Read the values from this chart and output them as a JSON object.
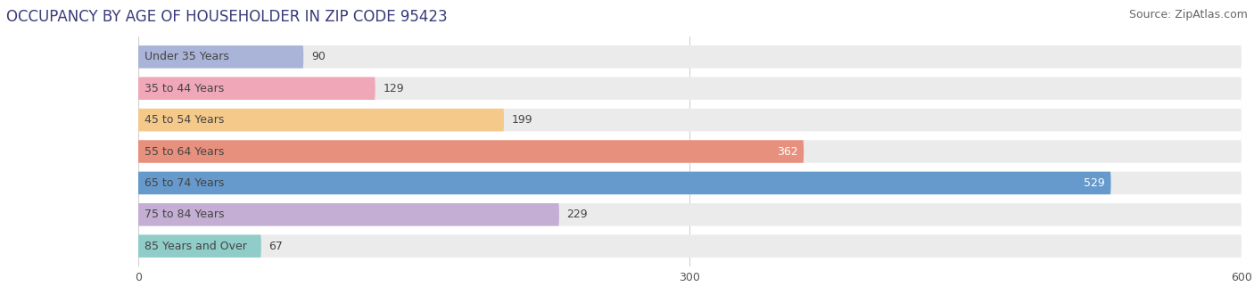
{
  "title": "OCCUPANCY BY AGE OF HOUSEHOLDER IN ZIP CODE 95423",
  "source": "Source: ZipAtlas.com",
  "categories": [
    "Under 35 Years",
    "35 to 44 Years",
    "45 to 54 Years",
    "55 to 64 Years",
    "65 to 74 Years",
    "75 to 84 Years",
    "85 Years and Over"
  ],
  "values": [
    90,
    129,
    199,
    362,
    529,
    229,
    67
  ],
  "bar_colors": [
    "#aab4d8",
    "#f0a8b8",
    "#f5c98a",
    "#e8907e",
    "#6699cc",
    "#c4aed4",
    "#90cdc8"
  ],
  "bar_bg_color": "#ebebeb",
  "xlim": [
    0,
    600
  ],
  "xticks": [
    0,
    300,
    600
  ],
  "title_fontsize": 12,
  "source_fontsize": 9,
  "label_fontsize": 9,
  "value_fontsize": 9,
  "bar_height": 0.72,
  "background_color": "#ffffff",
  "grid_color": "#d0d0d0",
  "value_label_threshold": 300,
  "label_color": "#444444",
  "title_color": "#3a3a7a"
}
